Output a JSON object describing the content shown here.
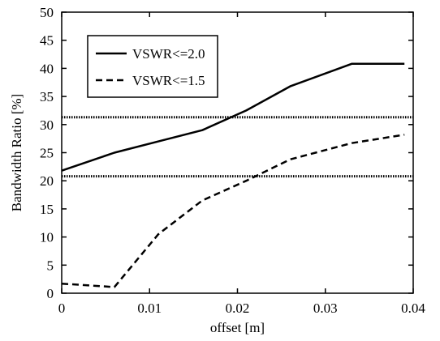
{
  "chart_data": {
    "type": "line",
    "xlabel": "offset  [m]",
    "ylabel": "Bandwidth Ratio  [%]",
    "xlim": [
      0,
      0.04
    ],
    "ylim": [
      0,
      50
    ],
    "x_ticks": [
      0,
      0.01,
      0.02,
      0.03,
      0.04
    ],
    "x_tick_labels": [
      "0",
      "0.01",
      "0.02",
      "0.03",
      "0.04"
    ],
    "y_ticks": [
      0,
      5,
      10,
      15,
      20,
      25,
      30,
      35,
      40,
      45,
      50
    ],
    "y_tick_labels": [
      "0",
      "5",
      "10",
      "15",
      "20",
      "25",
      "30",
      "35",
      "40",
      "45",
      "50"
    ],
    "grid": false,
    "legend_position": "top-left",
    "series": [
      {
        "name": "VSWR<=2.0",
        "style": "solid",
        "color": "#000000",
        "x": [
          0,
          0.006,
          0.011,
          0.016,
          0.021,
          0.026,
          0.033,
          0.039
        ],
        "y": [
          21.8,
          25,
          27,
          29,
          32.5,
          36.8,
          40.8,
          40.8
        ]
      },
      {
        "name": "VSWR<=1.5",
        "style": "dashed",
        "color": "#000000",
        "x": [
          0,
          0.006,
          0.011,
          0.016,
          0.021,
          0.026,
          0.033,
          0.039
        ],
        "y": [
          1.7,
          1.1,
          10.5,
          16.5,
          20,
          23.8,
          26.7,
          28.2
        ]
      }
    ],
    "reference_lines": [
      {
        "axis": "y",
        "value": 31.3,
        "style": "dotted"
      },
      {
        "axis": "y",
        "value": 20.8,
        "style": "dotted"
      }
    ]
  }
}
